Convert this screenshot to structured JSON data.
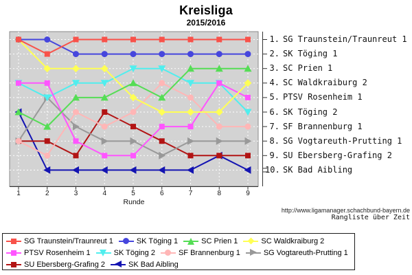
{
  "chart_data": {
    "type": "line",
    "title": "Kreisliga",
    "subtitle": "2015/2016",
    "xlabel": "Runde",
    "x": [
      1,
      2,
      3,
      4,
      5,
      6,
      7,
      8,
      9
    ],
    "ylim": [
      1,
      10
    ],
    "y_inverted": true,
    "grid": true,
    "legend_position": "bottom",
    "colors": {
      "plot_bg": "#d3d3d3",
      "grid": "#ffffff",
      "frame": "#8a8a8a",
      "axis": "#333333"
    },
    "series": [
      {
        "name": "SG Traunstein/Traunreut 1",
        "color": "#f8524a",
        "marker": "square",
        "ranks": [
          1,
          2,
          1,
          1,
          1,
          1,
          1,
          1,
          1
        ]
      },
      {
        "name": "SK Töging 1",
        "color": "#4646dd",
        "marker": "circle",
        "ranks": [
          1,
          1,
          2,
          2,
          2,
          2,
          2,
          2,
          2
        ]
      },
      {
        "name": "SC Prien 1",
        "color": "#55dd55",
        "marker": "triangle-up",
        "ranks": [
          6,
          7,
          5,
          5,
          4,
          5,
          3,
          3,
          3
        ]
      },
      {
        "name": "SC Waldkraiburg 2",
        "color": "#ffff55",
        "marker": "diamond",
        "ranks": [
          1,
          3,
          3,
          3,
          5,
          6,
          6,
          6,
          4
        ]
      },
      {
        "name": "PTSV Rosenheim 1",
        "color": "#ff55ff",
        "marker": "square",
        "ranks": [
          4,
          4,
          8,
          9,
          9,
          7,
          7,
          4,
          5
        ]
      },
      {
        "name": "SK Töging 2",
        "color": "#50eeee",
        "marker": "triangle-down",
        "ranks": [
          4,
          5,
          4,
          4,
          3,
          3,
          4,
          4,
          6
        ]
      },
      {
        "name": "SF Brannenburg 1",
        "color": "#ffb6b6",
        "marker": "circle",
        "ranks": [
          8,
          9,
          6,
          7,
          6,
          4,
          5,
          7,
          7
        ]
      },
      {
        "name": "SG Vogtareuth-Prutting 1",
        "color": "#999999",
        "marker": "triangle-right",
        "ranks": [
          8,
          5,
          7,
          8,
          8,
          9,
          8,
          8,
          8
        ]
      },
      {
        "name": "SU Ebersberg-Grafing 2",
        "color": "#b21414",
        "marker": "square",
        "ranks": [
          8,
          8,
          9,
          6,
          7,
          8,
          9,
          9,
          9
        ]
      },
      {
        "name": "SK Bad Aibling",
        "color": "#1414b2",
        "marker": "triangle-left",
        "ranks": [
          6,
          10,
          10,
          10,
          10,
          10,
          10,
          9,
          10
        ]
      }
    ],
    "legend_rows": [
      [
        0,
        1,
        2,
        3
      ],
      [
        4,
        5,
        6,
        7
      ],
      [
        8,
        9
      ]
    ]
  },
  "standings": [
    {
      "rank": "1.",
      "team": "SG Traunstein/Traunreut 1"
    },
    {
      "rank": "2.",
      "team": "SK Töging 1"
    },
    {
      "rank": "3.",
      "team": "SC Prien 1"
    },
    {
      "rank": "4.",
      "team": "SC Waldkraiburg 2"
    },
    {
      "rank": "5.",
      "team": "PTSV Rosenheim 1"
    },
    {
      "rank": "6.",
      "team": "SK Töging 2"
    },
    {
      "rank": "7.",
      "team": "SF Brannenburg 1"
    },
    {
      "rank": "8.",
      "team": "SG Vogtareuth-Prutting 1"
    },
    {
      "rank": "9.",
      "team": "SU Ebersberg-Grafing 2"
    },
    {
      "rank": "10.",
      "team": "SK Bad Aibling"
    }
  ],
  "footer": {
    "url": "http://www.ligamanager.schachbund-bayern.de",
    "caption": "Rangliste über Zeit"
  }
}
